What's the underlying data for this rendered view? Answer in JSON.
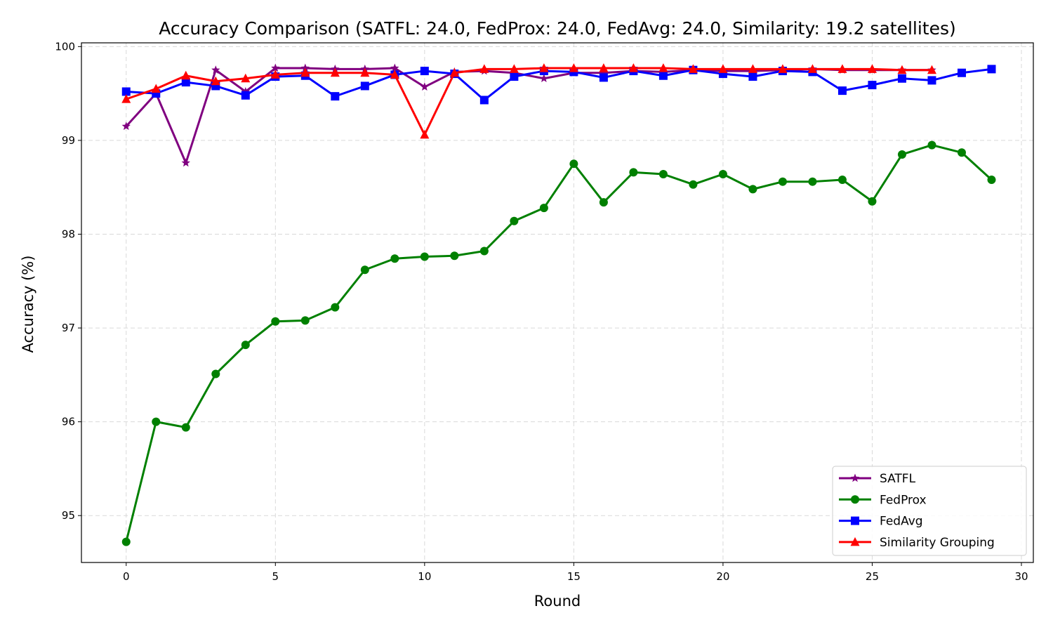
{
  "chart_data": {
    "type": "line",
    "title": "Accuracy Comparison (SATFL: 24.0, FedProx: 24.0, FedAvg: 24.0, Similarity: 19.2 satellites)",
    "xlabel": "Round",
    "ylabel": "Accuracy (%)",
    "xlim": [
      -1.5,
      30.4
    ],
    "ylim": [
      94.5,
      100.04
    ],
    "xticks": [
      0,
      5,
      10,
      15,
      20,
      25,
      30
    ],
    "yticks": [
      95,
      96,
      97,
      98,
      99,
      100
    ],
    "grid": true,
    "legend_position": "bottom-right",
    "series": [
      {
        "name": "SATFL",
        "color": "#800080",
        "marker": "star",
        "x": [
          0,
          1,
          2,
          3,
          4,
          5,
          6,
          7,
          8,
          9,
          10,
          11,
          12,
          13,
          14,
          15,
          16,
          17,
          18,
          19,
          20,
          21,
          22,
          23,
          24,
          25,
          26,
          27
        ],
        "values": [
          99.15,
          99.5,
          98.76,
          99.75,
          99.52,
          99.77,
          99.77,
          99.76,
          99.76,
          99.77,
          99.57,
          99.73,
          99.74,
          99.72,
          99.66,
          99.72,
          99.72,
          99.74,
          99.73,
          99.75,
          99.74,
          99.74,
          99.75,
          99.76,
          99.75,
          99.75,
          99.75,
          99.75
        ]
      },
      {
        "name": "FedProx",
        "color": "#008000",
        "marker": "circle",
        "x": [
          0,
          1,
          2,
          3,
          4,
          5,
          6,
          7,
          8,
          9,
          10,
          11,
          12,
          13,
          14,
          15,
          16,
          17,
          18,
          19,
          20,
          21,
          22,
          23,
          24,
          25,
          26,
          27,
          28,
          29
        ],
        "values": [
          94.72,
          96.0,
          95.94,
          96.51,
          96.82,
          97.07,
          97.08,
          97.22,
          97.62,
          97.74,
          97.76,
          97.77,
          97.82,
          98.14,
          98.28,
          98.75,
          98.34,
          98.66,
          98.64,
          98.53,
          98.64,
          98.48,
          98.56,
          98.56,
          98.58,
          98.35,
          98.85,
          98.95,
          98.87,
          98.58
        ]
      },
      {
        "name": "FedAvg",
        "color": "#0000ff",
        "marker": "square",
        "x": [
          0,
          1,
          2,
          3,
          4,
          5,
          6,
          7,
          8,
          9,
          10,
          11,
          12,
          13,
          14,
          15,
          16,
          17,
          18,
          19,
          20,
          21,
          22,
          23,
          24,
          25,
          26,
          27,
          28,
          29
        ],
        "values": [
          99.52,
          99.5,
          99.62,
          99.58,
          99.48,
          99.68,
          99.69,
          99.47,
          99.58,
          99.7,
          99.74,
          99.71,
          99.43,
          99.68,
          99.74,
          99.73,
          99.67,
          99.74,
          99.69,
          99.75,
          99.71,
          99.68,
          99.74,
          99.73,
          99.53,
          99.59,
          99.66,
          99.64,
          99.72,
          99.76
        ]
      },
      {
        "name": "Similarity Grouping",
        "color": "#ff0000",
        "marker": "triangle",
        "x": [
          0,
          1,
          2,
          3,
          4,
          5,
          6,
          7,
          8,
          9,
          10,
          11,
          12,
          13,
          14,
          15,
          16,
          17,
          18,
          19,
          20,
          21,
          22,
          23,
          24,
          25,
          26,
          27
        ],
        "values": [
          99.44,
          99.55,
          99.69,
          99.63,
          99.66,
          99.7,
          99.72,
          99.72,
          99.72,
          99.7,
          99.06,
          99.72,
          99.76,
          99.76,
          99.77,
          99.77,
          99.77,
          99.77,
          99.77,
          99.76,
          99.76,
          99.76,
          99.76,
          99.76,
          99.76,
          99.76,
          99.75,
          99.75
        ]
      }
    ]
  }
}
